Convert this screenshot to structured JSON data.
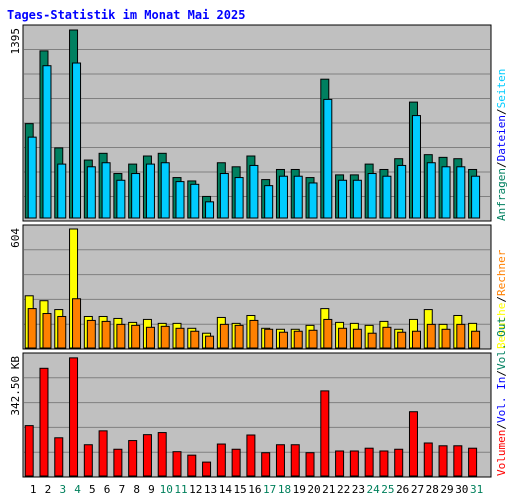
{
  "title": "Tages-Statistik im Monat Mai 2025",
  "colors": {
    "title": "#0000ff",
    "background": "#c0c0c0",
    "grid": "#808080",
    "anfragen": "#008060",
    "dateien": "#00ccff",
    "seiten": "#00ccff",
    "besuche": "#ffff00",
    "rechner": "#ff8000",
    "volumen": "#ff0000",
    "vol_in": "#0000ff",
    "vol_out": "#008060",
    "weekend_day": "#00805c",
    "weekday": "#000000"
  },
  "panels": {
    "top": {
      "ylabel": "1395"
    },
    "mid": {
      "ylabel": "604"
    },
    "bottom": {
      "ylabel": "342.50 KB"
    }
  },
  "legends": {
    "top": [
      {
        "text": "Anfragen",
        "color": "#008060"
      },
      {
        "text": "Dateien",
        "color": "#0000ff"
      },
      {
        "text": "Seiten",
        "color": "#00ccff"
      }
    ],
    "mid": [
      {
        "text": "Besuche",
        "color": "#ffff00"
      },
      {
        "text": "Rechner",
        "color": "#ff8000"
      }
    ],
    "bottom": [
      {
        "text": "Volumen",
        "color": "#ff0000"
      },
      {
        "text": "Vol. In",
        "color": "#0000ff"
      },
      {
        "text": "Vol. Out",
        "color": "#008060"
      }
    ],
    "separator": "/"
  },
  "chart_data": [
    {
      "type": "bar",
      "categories": [
        "1",
        "2",
        "3",
        "4",
        "5",
        "6",
        "7",
        "8",
        "9",
        "10",
        "11",
        "12",
        "13",
        "14",
        "15",
        "16",
        "17",
        "18",
        "19",
        "20",
        "21",
        "22",
        "23",
        "24",
        "25",
        "26",
        "27",
        "28",
        "29",
        "30",
        "31"
      ],
      "ylim": [
        0,
        1395
      ],
      "series": [
        {
          "name": "Anfragen",
          "values": [
            700,
            1240,
            520,
            1395,
            430,
            480,
            330,
            400,
            460,
            480,
            300,
            275,
            160,
            410,
            380,
            460,
            285,
            360,
            360,
            300,
            1030,
            320,
            320,
            400,
            360,
            440,
            860,
            470,
            450,
            440,
            360
          ]
        },
        {
          "name": "Dateien",
          "values": [
            600,
            1130,
            400,
            1150,
            380,
            410,
            280,
            330,
            400,
            410,
            270,
            250,
            120,
            330,
            300,
            390,
            240,
            310,
            310,
            260,
            880,
            280,
            280,
            330,
            310,
            390,
            760,
            410,
            380,
            380,
            310
          ]
        },
        {
          "name": "Seiten",
          "values": [
            600,
            1130,
            400,
            1150,
            380,
            410,
            280,
            330,
            400,
            410,
            270,
            250,
            120,
            330,
            300,
            390,
            240,
            310,
            310,
            260,
            880,
            280,
            280,
            330,
            310,
            390,
            760,
            410,
            380,
            380,
            310
          ]
        }
      ]
    },
    {
      "type": "bar",
      "categories": [
        "1",
        "2",
        "3",
        "4",
        "5",
        "6",
        "7",
        "8",
        "9",
        "10",
        "11",
        "12",
        "13",
        "14",
        "15",
        "16",
        "17",
        "18",
        "19",
        "20",
        "21",
        "22",
        "23",
        "24",
        "25",
        "26",
        "27",
        "28",
        "29",
        "30",
        "31"
      ],
      "ylim": [
        0,
        604
      ],
      "series": [
        {
          "name": "Besuche",
          "values": [
            265,
            240,
            195,
            604,
            160,
            160,
            150,
            130,
            145,
            125,
            125,
            100,
            75,
            155,
            125,
            165,
            100,
            95,
            95,
            115,
            200,
            130,
            125,
            115,
            135,
            95,
            145,
            195,
            120,
            165,
            125
          ]
        },
        {
          "name": "Rechner",
          "values": [
            200,
            175,
            160,
            250,
            140,
            135,
            120,
            115,
            105,
            110,
            100,
            85,
            60,
            120,
            115,
            140,
            95,
            80,
            85,
            90,
            145,
            100,
            95,
            75,
            105,
            80,
            85,
            120,
            95,
            120,
            85
          ]
        }
      ]
    },
    {
      "type": "bar",
      "categories": [
        "1",
        "2",
        "3",
        "4",
        "5",
        "6",
        "7",
        "8",
        "9",
        "10",
        "11",
        "12",
        "13",
        "14",
        "15",
        "16",
        "17",
        "18",
        "19",
        "20",
        "21",
        "22",
        "23",
        "24",
        "25",
        "26",
        "27",
        "28",
        "29",
        "30",
        "31"
      ],
      "ylim": [
        0,
        342.5
      ],
      "yunit": "KB",
      "series": [
        {
          "name": "Volumen",
          "values": [
            145,
            310,
            110,
            340,
            90,
            130,
            77,
            102,
            119,
            125,
            70,
            60,
            40,
            92,
            77,
            118,
            67,
            90,
            90,
            67,
            245,
            72,
            72,
            80,
            72,
            77,
            185,
            95,
            87,
            87,
            80
          ]
        }
      ]
    }
  ],
  "x_axis": {
    "labels": [
      "1",
      "2",
      "3",
      "4",
      "5",
      "6",
      "7",
      "8",
      "9",
      "10",
      "11",
      "12",
      "13",
      "14",
      "15",
      "16",
      "17",
      "18",
      "19",
      "20",
      "21",
      "22",
      "23",
      "24",
      "25",
      "26",
      "27",
      "28",
      "29",
      "30",
      "31"
    ],
    "weekend_days": [
      3,
      4,
      10,
      11,
      17,
      18,
      24,
      25,
      31
    ]
  }
}
